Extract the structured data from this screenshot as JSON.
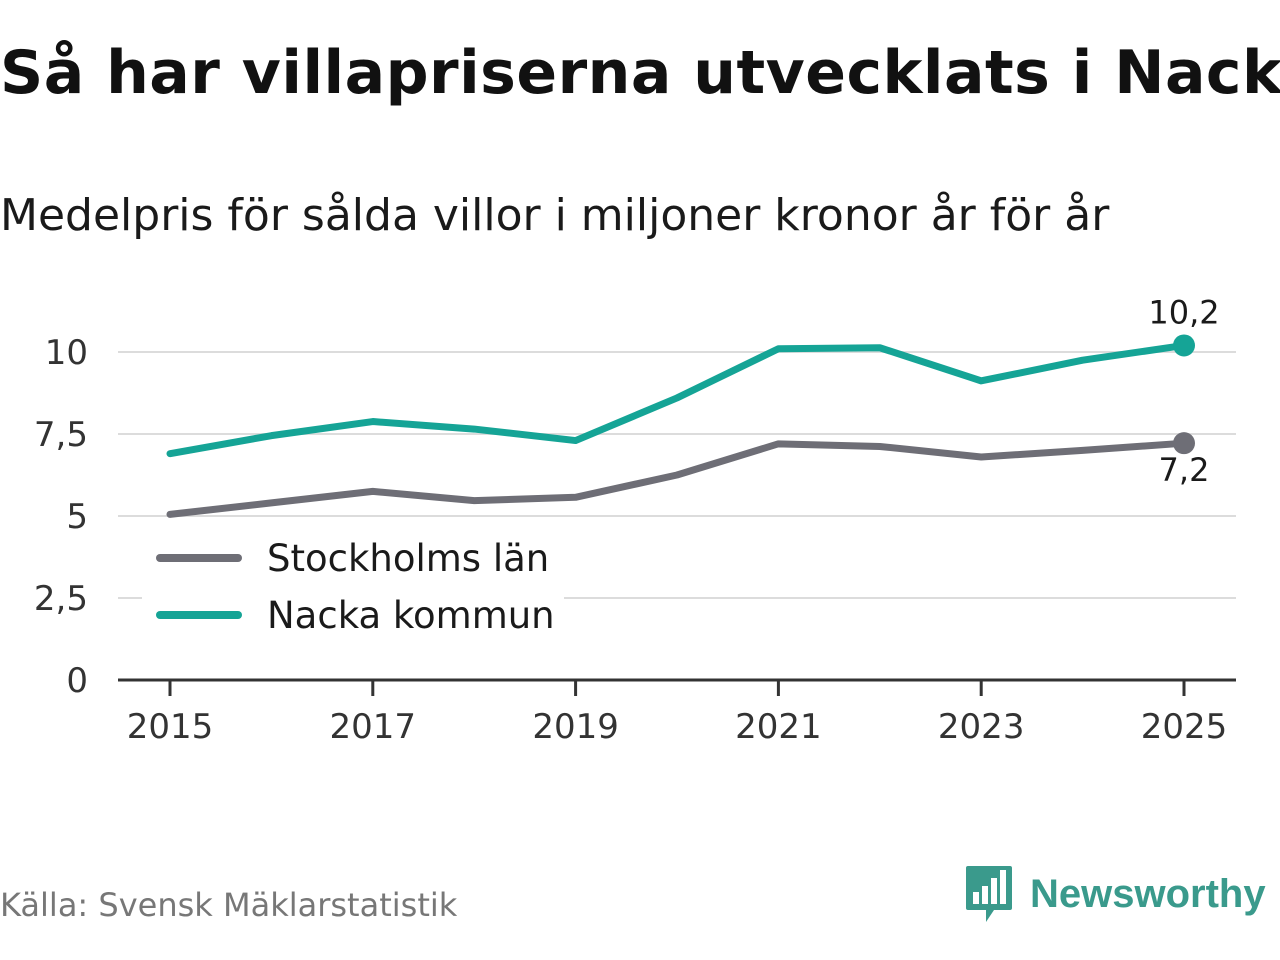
{
  "title": "Så har villapriserna utvecklats i Nacka",
  "subtitle": "Medelpris för sålda villor i miljoner kronor år för år",
  "source": "Källa: Svensk Mäklarstatistik",
  "brand": {
    "name": "Newsworthy",
    "color": "#3a9a8c",
    "icon": "newsworthy-logo-icon"
  },
  "chart_data": {
    "type": "line",
    "title": "Så har villapriserna utvecklats i Nacka",
    "subtitle": "Medelpris för sålda villor i miljoner kronor år för år",
    "xlabel": "",
    "ylabel": "",
    "x": [
      2015,
      2016,
      2017,
      2018,
      2019,
      2020,
      2021,
      2022,
      2023,
      2024,
      2025
    ],
    "x_ticks": [
      2015,
      2017,
      2019,
      2021,
      2023,
      2025
    ],
    "x_tick_labels": [
      "2015",
      "2017",
      "2019",
      "2021",
      "2023",
      "2025"
    ],
    "y_ticks": [
      0,
      2.5,
      5,
      7.5,
      10
    ],
    "y_tick_labels": [
      "0",
      "2,5",
      "5",
      "7,5",
      "10"
    ],
    "ylim": [
      0,
      10
    ],
    "grid": true,
    "legend_position": "left",
    "series": [
      {
        "name": "Stockholms län",
        "color": "#6e6e76",
        "values": [
          5.05,
          5.4,
          5.75,
          5.47,
          5.57,
          6.25,
          7.2,
          7.12,
          6.8,
          7.0,
          7.22
        ],
        "end_label": "7,2"
      },
      {
        "name": "Nacka kommun",
        "color": "#15a496",
        "values": [
          6.9,
          7.45,
          7.88,
          7.65,
          7.3,
          8.6,
          10.1,
          10.13,
          9.12,
          9.75,
          10.2
        ],
        "end_label": "10,2"
      }
    ]
  }
}
